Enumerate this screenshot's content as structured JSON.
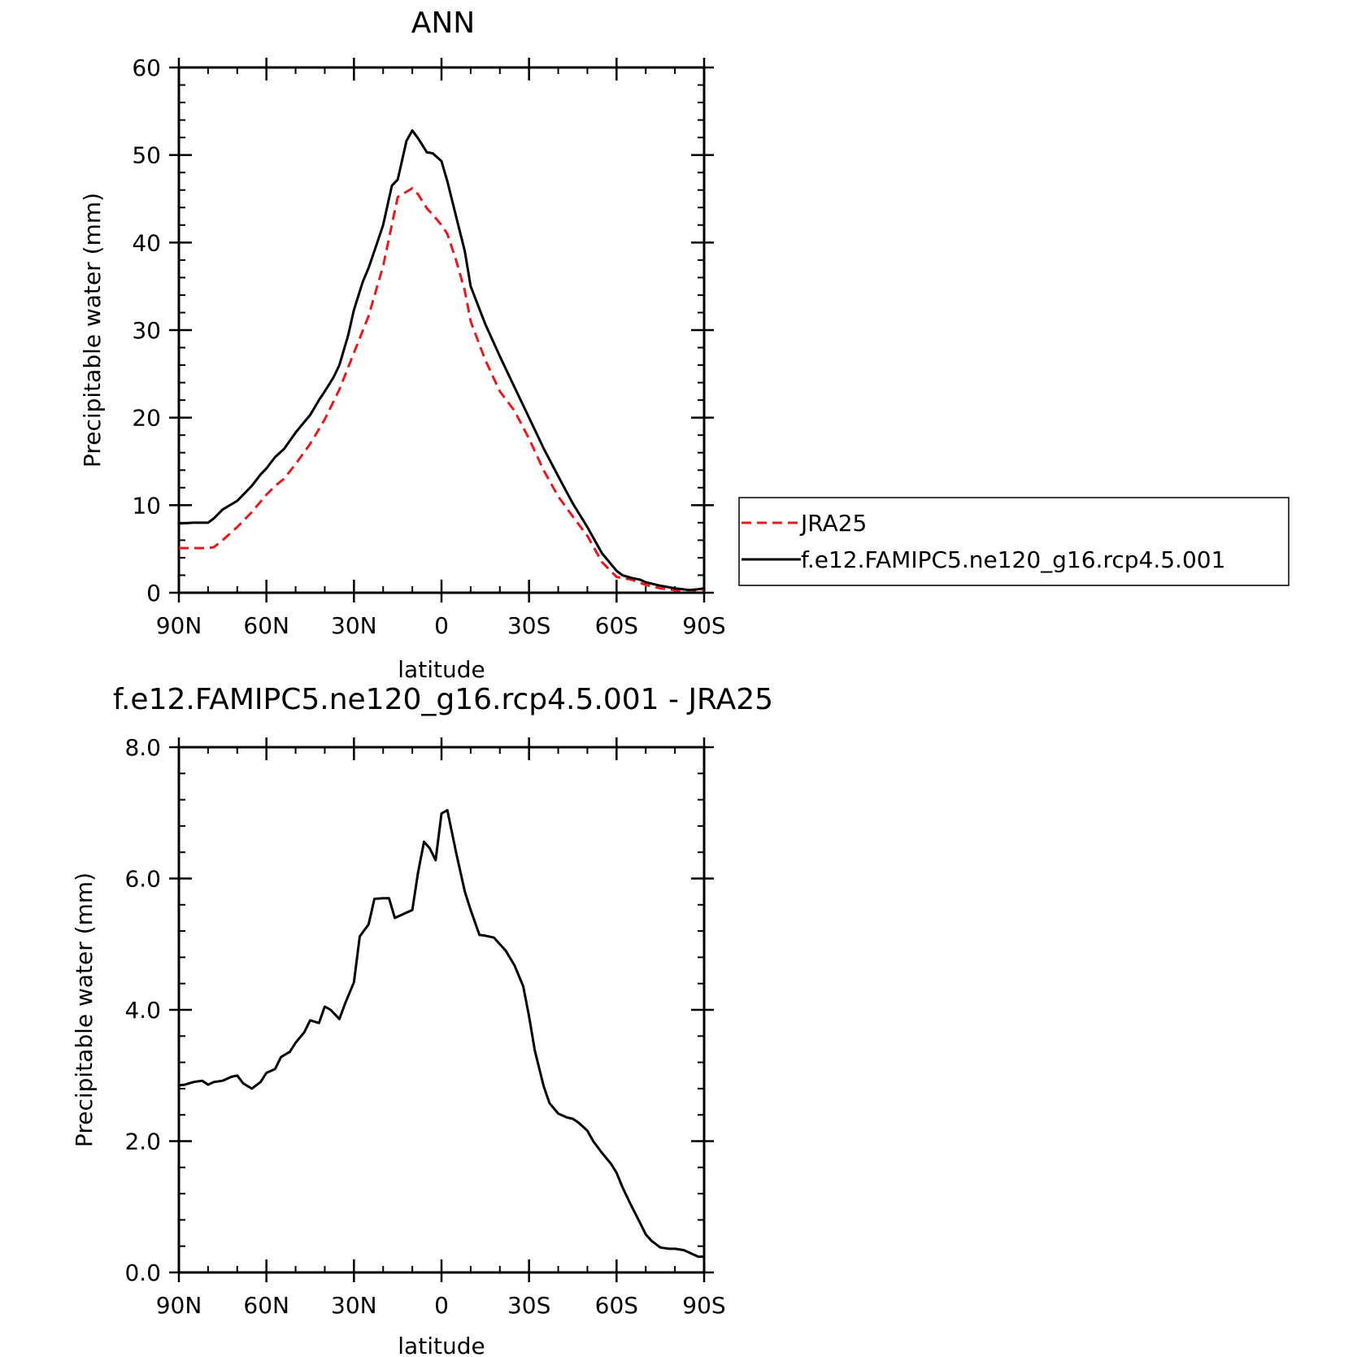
{
  "chart_data": [
    {
      "type": "line",
      "title": "ANN",
      "xlabel": "latitude",
      "ylabel": "Precipitable water (mm)",
      "xlim": [
        90,
        -90
      ],
      "ylim": [
        0,
        60
      ],
      "x_ticks": [
        {
          "value": 90,
          "label": "90N"
        },
        {
          "value": 60,
          "label": "60N"
        },
        {
          "value": 30,
          "label": "30N"
        },
        {
          "value": 0,
          "label": "0"
        },
        {
          "value": -30,
          "label": "30S"
        },
        {
          "value": -60,
          "label": "60S"
        },
        {
          "value": -90,
          "label": "90S"
        }
      ],
      "y_ticks": [
        {
          "value": 0,
          "label": "0"
        },
        {
          "value": 10,
          "label": "10"
        },
        {
          "value": 20,
          "label": "20"
        },
        {
          "value": 30,
          "label": "30"
        },
        {
          "value": 40,
          "label": "40"
        },
        {
          "value": 50,
          "label": "50"
        },
        {
          "value": 60,
          "label": "60"
        }
      ],
      "legend": "right",
      "series": [
        {
          "name": "JRA25",
          "color": "#e41a1c",
          "style": "dashed",
          "x": [
            90,
            80,
            78,
            75,
            70,
            65,
            60,
            57,
            54,
            50,
            45,
            40,
            35,
            30,
            25,
            20,
            15,
            10,
            8,
            5,
            3,
            0,
            -2,
            -5,
            -8,
            -10,
            -15,
            -20,
            -25,
            -30,
            -35,
            -40,
            -45,
            -50,
            -55,
            -60,
            -65,
            -70,
            -75,
            -80,
            -85,
            -90
          ],
          "y": [
            5.1,
            5.1,
            5.2,
            6.0,
            7.5,
            9.2,
            11.2,
            12.2,
            13.0,
            14.7,
            17.0,
            19.8,
            23.2,
            27.4,
            31.6,
            37.3,
            45.2,
            46.2,
            45.5,
            43.9,
            43.2,
            42.0,
            41.0,
            38.0,
            34.5,
            31.0,
            26.6,
            23.0,
            20.8,
            17.6,
            14.0,
            11.0,
            8.7,
            6.5,
            3.5,
            1.8,
            1.5,
            0.9,
            0.5,
            0.3,
            0.2,
            0.4
          ]
        },
        {
          "name": "f.e12.FAMIPC5.ne120_g16.rcp4.5.001",
          "color": "#000000",
          "style": "solid",
          "x": [
            90,
            85,
            80,
            78,
            75,
            70,
            65,
            62,
            60,
            57,
            54,
            50,
            47,
            45,
            42,
            40,
            37,
            35,
            32,
            30,
            27,
            25,
            22,
            20,
            17,
            15,
            12,
            10,
            8,
            5,
            3,
            0,
            -2,
            -5,
            -8,
            -10,
            -15,
            -20,
            -25,
            -30,
            -35,
            -40,
            -45,
            -50,
            -55,
            -60,
            -62,
            -65,
            -68,
            -70,
            -75,
            -80,
            -85,
            -88,
            -90
          ],
          "y": [
            7.9,
            8.0,
            8.0,
            8.5,
            9.5,
            10.5,
            12.2,
            13.5,
            14.2,
            15.5,
            16.4,
            18.3,
            19.5,
            20.3,
            22.0,
            23.0,
            24.6,
            26.0,
            29.4,
            32.3,
            35.5,
            37.1,
            40.0,
            42.0,
            46.5,
            47.2,
            51.6,
            52.8,
            51.9,
            50.3,
            50.2,
            49.3,
            47.0,
            43.0,
            39.0,
            35.0,
            30.7,
            27.0,
            23.5,
            20.0,
            16.5,
            13.3,
            10.2,
            7.5,
            4.5,
            2.5,
            2.0,
            1.7,
            1.5,
            1.2,
            0.8,
            0.5,
            0.3,
            0.4,
            0.5
          ]
        }
      ]
    },
    {
      "type": "line",
      "title": "f.e12.FAMIPC5.ne120_g16.rcp4.5.001 - JRA25",
      "xlabel": "latitude",
      "ylabel": "Precipitable water (mm)",
      "xlim": [
        90,
        -90
      ],
      "ylim": [
        0.0,
        8.0
      ],
      "x_ticks": [
        {
          "value": 90,
          "label": "90N"
        },
        {
          "value": 60,
          "label": "60N"
        },
        {
          "value": 30,
          "label": "30N"
        },
        {
          "value": 0,
          "label": "0"
        },
        {
          "value": -30,
          "label": "30S"
        },
        {
          "value": -60,
          "label": "60S"
        },
        {
          "value": -90,
          "label": "90S"
        }
      ],
      "y_ticks": [
        {
          "value": 0,
          "label": "0.0"
        },
        {
          "value": 2,
          "label": "2.0"
        },
        {
          "value": 4,
          "label": "4.0"
        },
        {
          "value": 6,
          "label": "6.0"
        },
        {
          "value": 8,
          "label": "8.0"
        }
      ],
      "series": [
        {
          "color": "#000000",
          "style": "solid",
          "x": [
            90,
            88,
            85,
            82,
            80,
            78,
            75,
            72,
            70,
            68,
            65,
            62,
            60,
            57,
            55,
            52,
            50,
            47,
            45,
            42,
            40,
            38,
            35,
            33,
            30,
            28,
            25,
            23,
            20,
            18,
            16,
            13,
            10,
            8,
            6,
            4,
            2,
            0,
            -2,
            -5,
            -8,
            -10,
            -13,
            -15,
            -18,
            -20,
            -22,
            -25,
            -28,
            -30,
            -32,
            -35,
            -37,
            -40,
            -43,
            -45,
            -47,
            -50,
            -52,
            -55,
            -58,
            -60,
            -62,
            -65,
            -68,
            -70,
            -72,
            -75,
            -78,
            -80,
            -83,
            -85,
            -88,
            -90
          ],
          "y": [
            2.85,
            2.86,
            2.9,
            2.92,
            2.86,
            2.9,
            2.92,
            2.98,
            3.0,
            2.88,
            2.8,
            2.9,
            3.04,
            3.1,
            3.28,
            3.36,
            3.5,
            3.66,
            3.84,
            3.8,
            4.05,
            4.0,
            3.86,
            4.1,
            4.42,
            5.12,
            5.3,
            5.69,
            5.7,
            5.7,
            5.4,
            5.46,
            5.52,
            6.1,
            6.56,
            6.46,
            6.28,
            6.99,
            7.04,
            6.4,
            5.8,
            5.52,
            5.14,
            5.13,
            5.1,
            5.0,
            4.9,
            4.68,
            4.36,
            3.9,
            3.38,
            2.84,
            2.58,
            2.42,
            2.36,
            2.34,
            2.28,
            2.16,
            2.0,
            1.82,
            1.66,
            1.52,
            1.3,
            1.02,
            0.76,
            0.58,
            0.48,
            0.38,
            0.36,
            0.36,
            0.34,
            0.3,
            0.24,
            0.24
          ]
        }
      ]
    }
  ]
}
